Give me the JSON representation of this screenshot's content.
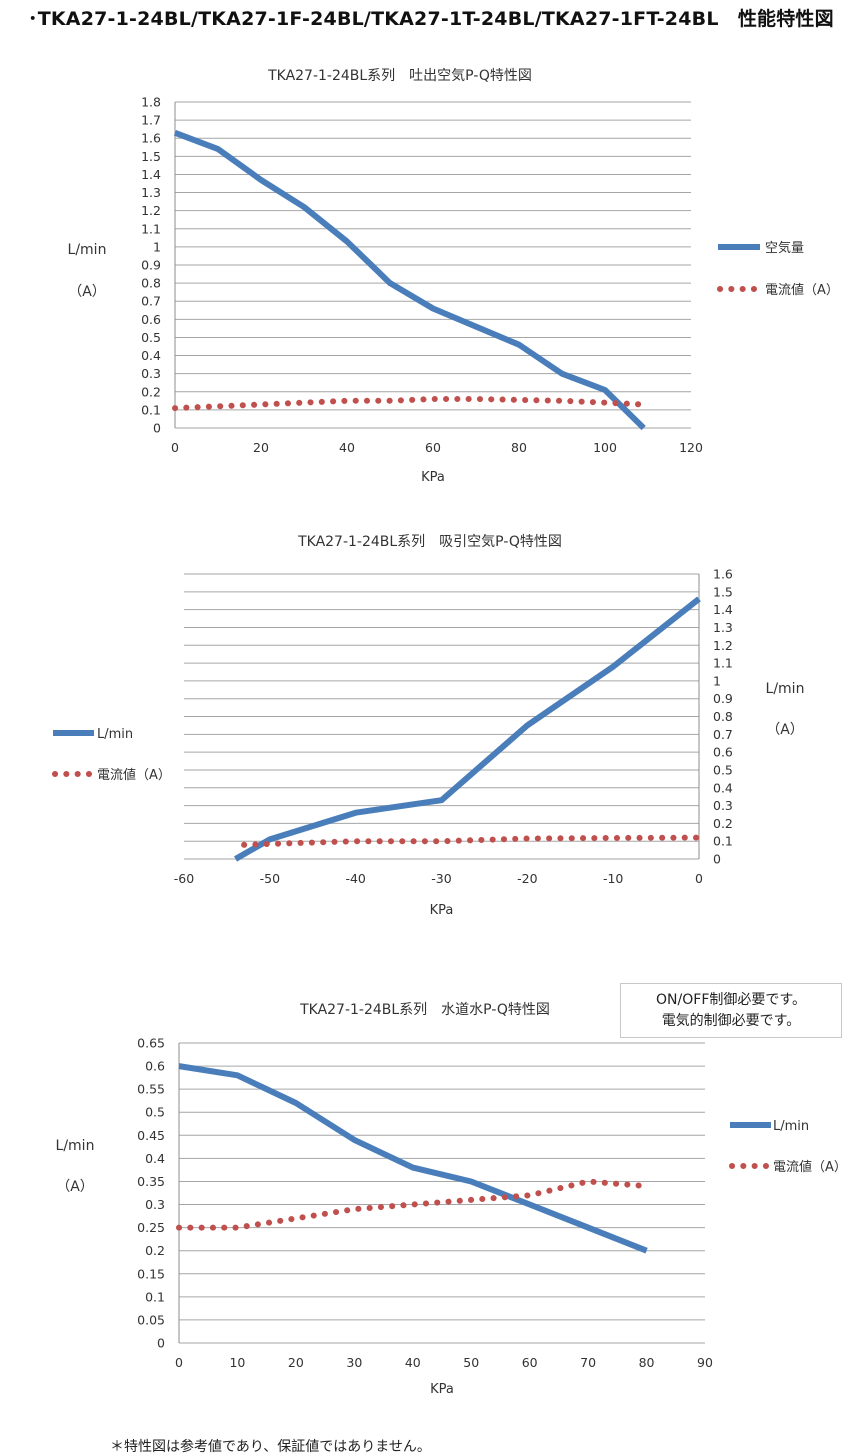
{
  "page": {
    "title": "･TKA27-1-24BL/TKA27-1F-24BL/TKA27-1T-24BL/TKA27-1FT-24BL　性能特性図",
    "footnote": "＊特性図は参考値であり、保証値ではありません。",
    "note_lines": [
      "ON/OFF制御必要です。",
      "電気的制御必要です。"
    ]
  },
  "chart_data": [
    {
      "type": "line",
      "title": "TKA27-1-24BL系列　吐出空気P-Q特性図",
      "xlabel": "KPa",
      "ylabel_lines": [
        "L/min",
        "（A）"
      ],
      "xlim": [
        0,
        120
      ],
      "xticks": [
        0,
        20,
        40,
        60,
        80,
        100,
        120
      ],
      "ylim": [
        0,
        1.8
      ],
      "yticks": [
        0,
        0.1,
        0.2,
        0.3,
        0.4,
        0.5,
        0.6,
        0.7,
        0.8,
        0.9,
        1,
        1.1,
        1.2,
        1.3,
        1.4,
        1.5,
        1.6,
        1.7,
        1.8
      ],
      "yaxis_side": "left",
      "grid": "horizontal",
      "legend_position": "right",
      "series": [
        {
          "name": "空気量",
          "style": "solid",
          "color": "#4a7ebb",
          "x": [
            0,
            10,
            20,
            30,
            40,
            50,
            60,
            70,
            80,
            90,
            100,
            109
          ],
          "y": [
            1.63,
            1.54,
            1.37,
            1.22,
            1.03,
            0.8,
            0.66,
            0.56,
            0.46,
            0.3,
            0.21,
            0.0
          ]
        },
        {
          "name": "電流値（A）",
          "style": "dotted",
          "color": "#c0504d",
          "x": [
            0,
            10,
            20,
            30,
            40,
            50,
            60,
            70,
            80,
            90,
            100,
            109
          ],
          "y": [
            0.11,
            0.12,
            0.13,
            0.14,
            0.15,
            0.15,
            0.16,
            0.16,
            0.155,
            0.15,
            0.14,
            0.13
          ]
        }
      ]
    },
    {
      "type": "line",
      "title": "TKA27-1-24BL系列　吸引空気P-Q特性図",
      "xlabel": "KPa",
      "ylabel_lines": [
        "L/min",
        "（A）"
      ],
      "xlim": [
        -60,
        0
      ],
      "xticks": [
        -60,
        -50,
        -40,
        -30,
        -20,
        -10,
        0
      ],
      "ylim": [
        0,
        1.6
      ],
      "yticks": [
        0,
        0.1,
        0.2,
        0.3,
        0.4,
        0.5,
        0.6,
        0.7,
        0.8,
        0.9,
        1,
        1.1,
        1.2,
        1.3,
        1.4,
        1.5,
        1.6
      ],
      "yaxis_side": "right",
      "grid": "horizontal",
      "legend_position": "left",
      "series": [
        {
          "name": "L/min",
          "style": "solid",
          "color": "#4a7ebb",
          "x": [
            -54,
            -50,
            -40,
            -30,
            -20,
            -10,
            0
          ],
          "y": [
            0.0,
            0.11,
            0.26,
            0.33,
            0.75,
            1.08,
            1.46
          ]
        },
        {
          "name": "電流値（A）",
          "style": "dotted",
          "color": "#c0504d",
          "x": [
            -53,
            -50,
            -40,
            -30,
            -20,
            -10,
            0
          ],
          "y": [
            0.08,
            0.085,
            0.1,
            0.1,
            0.115,
            0.118,
            0.12
          ]
        }
      ]
    },
    {
      "type": "line",
      "title": "TKA27-1-24BL系列　水道水P-Q特性図",
      "xlabel": "KPa",
      "ylabel_lines": [
        "L/min",
        "（A）"
      ],
      "xlim": [
        0,
        90
      ],
      "xticks": [
        0,
        10,
        20,
        30,
        40,
        50,
        60,
        70,
        80,
        90
      ],
      "ylim": [
        0,
        0.65
      ],
      "yticks": [
        0,
        0.05,
        0.1,
        0.15,
        0.2,
        0.25,
        0.3,
        0.35,
        0.4,
        0.45,
        0.5,
        0.55,
        0.6,
        0.65
      ],
      "yaxis_side": "left",
      "grid": "horizontal",
      "legend_position": "right",
      "series": [
        {
          "name": "L/min",
          "style": "solid",
          "color": "#4a7ebb",
          "x": [
            0,
            10,
            20,
            30,
            40,
            50,
            60,
            70,
            80
          ],
          "y": [
            0.6,
            0.58,
            0.52,
            0.44,
            0.38,
            0.35,
            0.3,
            0.25,
            0.2
          ]
        },
        {
          "name": "電流値（A）",
          "style": "dotted",
          "color": "#c0504d",
          "x": [
            0,
            10,
            20,
            30,
            40,
            50,
            60,
            65,
            70,
            75,
            80
          ],
          "y": [
            0.25,
            0.25,
            0.27,
            0.29,
            0.3,
            0.31,
            0.32,
            0.335,
            0.35,
            0.345,
            0.34
          ]
        }
      ]
    }
  ]
}
